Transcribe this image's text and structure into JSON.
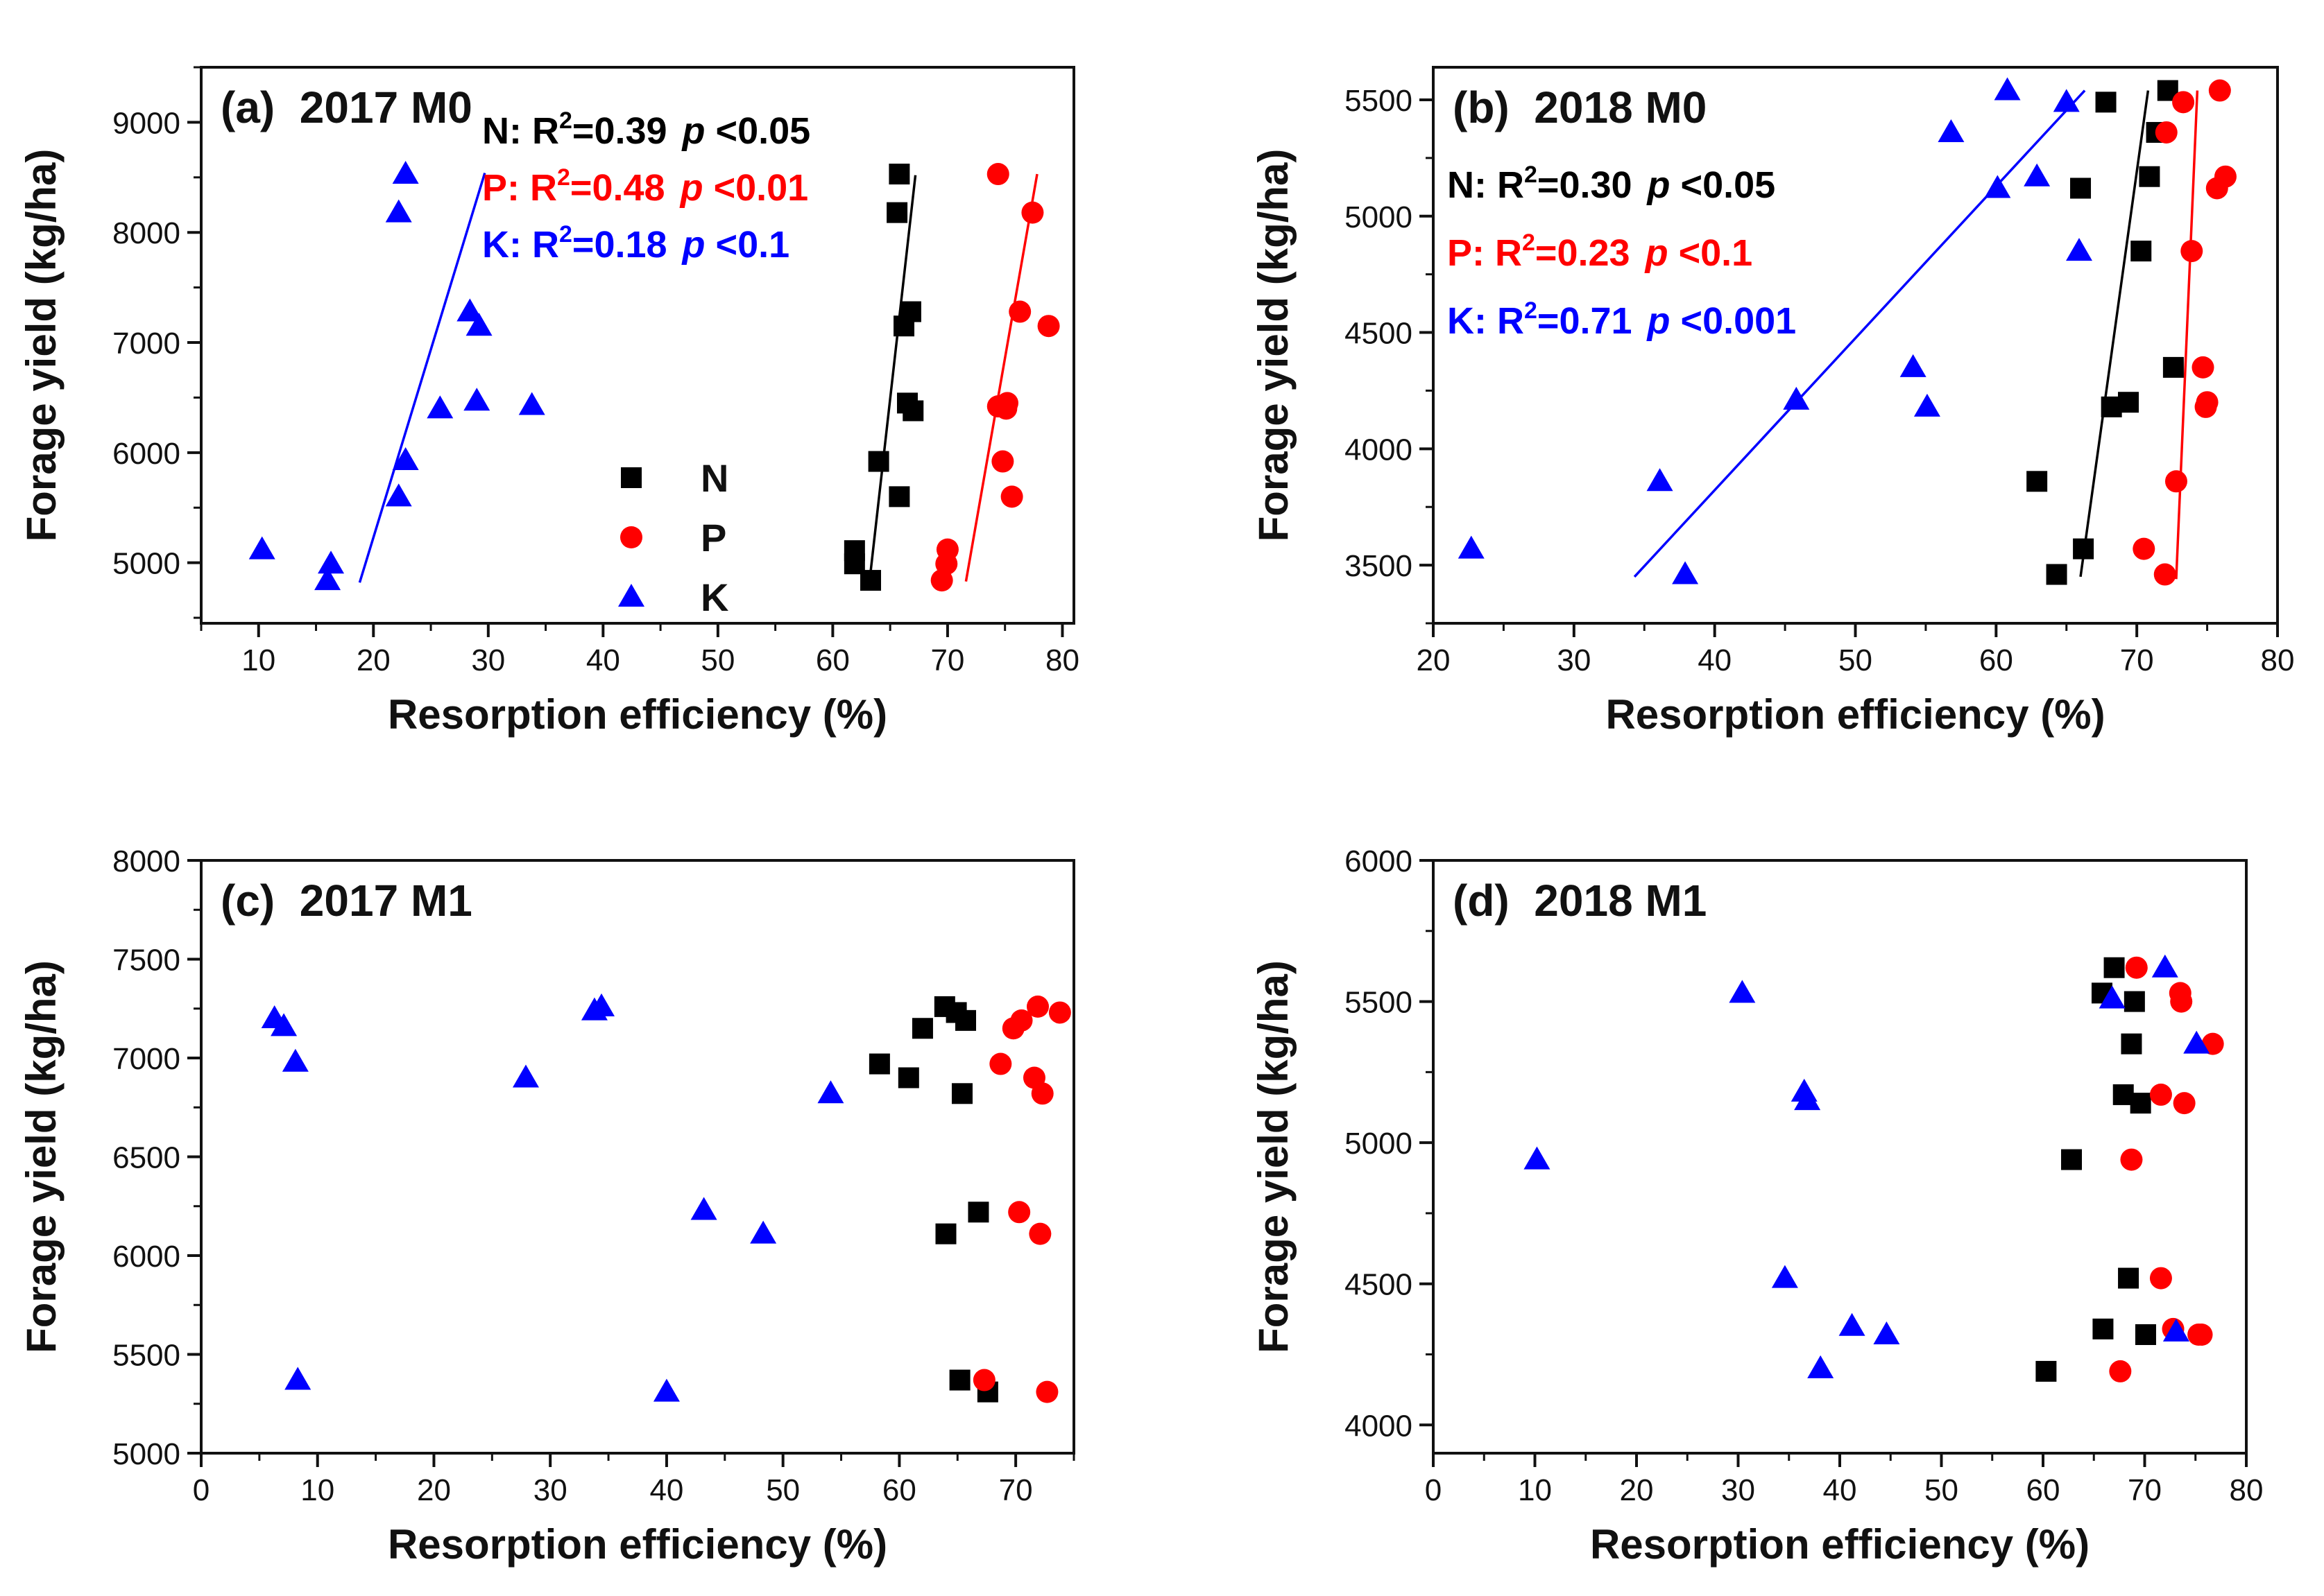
{
  "figure": {
    "type": "scatter",
    "panel_count": 4
  },
  "colors": {
    "N": "#000000",
    "P": "#ff0000",
    "K": "#0000ff",
    "axis": "#111111"
  },
  "legend_entries": [
    {
      "key": "N",
      "label": "N",
      "marker": "square",
      "color": "#000000"
    },
    {
      "key": "P",
      "label": "P",
      "marker": "circle",
      "color": "#ff0000"
    },
    {
      "key": "K",
      "label": "K",
      "marker": "triangle",
      "color": "#0000ff"
    }
  ],
  "chart_data": [
    {
      "id": "a",
      "type": "scatter",
      "title": "(a)  2017 M0",
      "xlabel": "Resorption efficiency (%)",
      "ylabel": "Forage yield (kg/ha)",
      "xlim": [
        5,
        81
      ],
      "ylim": [
        4450,
        9500
      ],
      "xticks": [
        10,
        20,
        30,
        40,
        50,
        60,
        70,
        80
      ],
      "xminor": 5,
      "yticks": [
        5000,
        6000,
        7000,
        8000,
        9000
      ],
      "yminor": 500,
      "legend": "bottom-center",
      "stats": [
        {
          "series": "N",
          "text": "N: R²=0.39  p <0.05",
          "label": "N: R",
          "sup": "2",
          "rest": "=0.39",
          "p": "p",
          "pval": " <0.05"
        },
        {
          "series": "P",
          "text": "P: R²=0.48  p <0.01",
          "label": "P: R",
          "sup": "2",
          "rest": "=0.48",
          "p": "p",
          "pval": " <0.01"
        },
        {
          "series": "K",
          "text": "K: R²=0.18  p <0.1",
          "label": "K: R",
          "sup": "2",
          "rest": "=0.18",
          "p": "p",
          "pval": " <0.1"
        }
      ],
      "series": [
        {
          "name": "N",
          "x": [
            65.8,
            65.6,
            66.8,
            66.2,
            66.5,
            67.0,
            64.0,
            65.8,
            61.9,
            61.9,
            63.3
          ],
          "y": [
            8530,
            8180,
            7280,
            7150,
            6450,
            6380,
            5920,
            5600,
            5110,
            4990,
            4840
          ]
        },
        {
          "name": "P",
          "x": [
            74.4,
            77.4,
            76.3,
            78.8,
            74.4,
            75.2,
            75.1,
            74.8,
            75.6,
            70.0,
            69.9,
            69.5
          ],
          "y": [
            8530,
            8180,
            7280,
            7150,
            6420,
            6450,
            6400,
            5920,
            5600,
            5120,
            4990,
            4840
          ]
        },
        {
          "name": "K",
          "x": [
            22.8,
            22.2,
            28.4,
            29.2,
            29.0,
            25.8,
            33.8,
            22.8,
            22.2,
            10.3,
            16.3,
            16.0
          ],
          "y": [
            8530,
            8180,
            7280,
            7150,
            6470,
            6400,
            6430,
            5930,
            5600,
            5120,
            4990,
            4840
          ]
        }
      ],
      "fits": [
        {
          "series": "N",
          "x": [
            63.3,
            67.2
          ],
          "y": [
            4920,
            8520
          ]
        },
        {
          "series": "P",
          "x": [
            71.6,
            77.8
          ],
          "y": [
            4830,
            8530
          ]
        },
        {
          "series": "K",
          "x": [
            18.8,
            29.7
          ],
          "y": [
            4820,
            8540
          ]
        }
      ]
    },
    {
      "id": "b",
      "type": "scatter",
      "title": "(b)  2018 M0",
      "xlabel": "Resorption efficiency (%)",
      "ylabel": "Forage yield (kg/ha)",
      "xlim": [
        20,
        80
      ],
      "ylim": [
        3250,
        5640
      ],
      "xticks": [
        20,
        30,
        40,
        50,
        60,
        70,
        80
      ],
      "xminor": 5,
      "yticks": [
        3500,
        4000,
        4500,
        5000,
        5500
      ],
      "yminor": 250,
      "legend": "none",
      "stats": [
        {
          "series": "N",
          "text": "N: R²=0.30  p <0.05",
          "label": "N: R",
          "sup": "2",
          "rest": "=0.30",
          "p": "p",
          "pval": " <0.05"
        },
        {
          "series": "P",
          "text": "P: R²=0.23  p <0.1",
          "label": "P: R",
          "sup": "2",
          "rest": "=0.23",
          "p": "p",
          "pval": " <0.1"
        },
        {
          "series": "K",
          "text": "K: R²=0.71  p <0.001",
          "label": "K: R",
          "sup": "2",
          "rest": "=0.71",
          "p": "p",
          "pval": " <0.001"
        }
      ],
      "series": [
        {
          "name": "N",
          "x": [
            72.2,
            67.8,
            71.4,
            66.0,
            70.9,
            70.3,
            72.6,
            69.4,
            68.2,
            62.9,
            66.2,
            64.3
          ],
          "y": [
            5540,
            5490,
            5360,
            5120,
            5170,
            4850,
            4350,
            4200,
            4180,
            3860,
            3570,
            3460
          ]
        },
        {
          "name": "P",
          "x": [
            75.9,
            73.3,
            72.1,
            75.7,
            76.3,
            73.9,
            74.7,
            75.0,
            74.9,
            72.8,
            70.5,
            72.0
          ],
          "y": [
            5540,
            5490,
            5360,
            5120,
            5170,
            4850,
            4350,
            4200,
            4180,
            3860,
            3570,
            3460
          ]
        },
        {
          "name": "K",
          "x": [
            60.8,
            65.0,
            56.8,
            60.1,
            62.9,
            65.9,
            54.1,
            45.8,
            55.1,
            36.1,
            22.7,
            37.9
          ],
          "y": [
            5540,
            5490,
            5360,
            5120,
            5170,
            4850,
            4350,
            4210,
            4180,
            3860,
            3570,
            3460
          ]
        }
      ],
      "fits": [
        {
          "series": "N",
          "x": [
            66.0,
            70.8
          ],
          "y": [
            3450,
            5540
          ]
        },
        {
          "series": "P",
          "x": [
            72.8,
            74.3
          ],
          "y": [
            3440,
            5540
          ]
        },
        {
          "series": "K",
          "x": [
            34.3,
            66.3
          ],
          "y": [
            3450,
            5540
          ]
        }
      ]
    },
    {
      "id": "c",
      "type": "scatter",
      "title": "(c)  2017 M1",
      "xlabel": "Resorption efficiency (%)",
      "ylabel": "Forage yield (kg/ha)",
      "xlim": [
        0,
        75
      ],
      "ylim": [
        5000,
        8000
      ],
      "xticks": [
        0,
        10,
        20,
        30,
        40,
        50,
        60,
        70
      ],
      "xminor": 5,
      "yticks": [
        5000,
        5500,
        6000,
        6500,
        7000,
        7500,
        8000
      ],
      "yminor": 250,
      "legend": "none",
      "stats": [],
      "series": [
        {
          "name": "N",
          "x": [
            63.9,
            64.9,
            65.7,
            62.0,
            58.3,
            60.8,
            65.4,
            66.8,
            64.0,
            65.2,
            67.6
          ],
          "y": [
            7260,
            7230,
            7190,
            7150,
            6970,
            6900,
            6820,
            6220,
            6110,
            5370,
            5310
          ]
        },
        {
          "name": "P",
          "x": [
            71.9,
            73.8,
            70.5,
            69.8,
            68.7,
            71.6,
            72.3,
            70.3,
            72.1,
            67.3,
            72.7
          ],
          "y": [
            7260,
            7230,
            7190,
            7150,
            6970,
            6900,
            6820,
            6220,
            6110,
            5370,
            5310
          ]
        },
        {
          "name": "K",
          "x": [
            6.3,
            7.1,
            8.1,
            27.9,
            33.8,
            34.4,
            54.1,
            43.2,
            48.3,
            8.3,
            40.0
          ],
          "y": [
            7200,
            7160,
            6980,
            6900,
            7240,
            7260,
            6820,
            6230,
            6110,
            5370,
            5310
          ]
        }
      ],
      "fits": []
    },
    {
      "id": "d",
      "type": "scatter",
      "title": "(d)  2018 M1",
      "xlabel": "Resorption efficiency (%)",
      "ylabel": "Forage yield (kg/ha)",
      "xlim": [
        0,
        80
      ],
      "ylim": [
        3900,
        6000
      ],
      "xticks": [
        0,
        10,
        20,
        30,
        40,
        50,
        60,
        70,
        80
      ],
      "xminor": 5,
      "yticks": [
        4000,
        4500,
        5000,
        5500,
        6000
      ],
      "yminor": 250,
      "legend": "none",
      "stats": [],
      "series": [
        {
          "name": "N",
          "x": [
            67.0,
            65.8,
            69.0,
            68.7,
            67.9,
            69.6,
            62.8,
            68.4,
            65.9,
            70.1,
            60.3
          ],
          "y": [
            5620,
            5530,
            5500,
            5350,
            5170,
            5140,
            4940,
            4520,
            4340,
            4320,
            4190
          ]
        },
        {
          "name": "P",
          "x": [
            69.2,
            73.5,
            73.6,
            76.7,
            71.6,
            73.9,
            68.7,
            71.6,
            72.8,
            75.6,
            75.3,
            67.6
          ],
          "y": [
            5620,
            5530,
            5500,
            5350,
            5170,
            5140,
            4940,
            4520,
            4340,
            4320,
            4320,
            4190
          ]
        },
        {
          "name": "K",
          "x": [
            72.0,
            66.8,
            75.1,
            30.4,
            36.5,
            36.8,
            10.2,
            34.6,
            41.2,
            44.6,
            38.1,
            73.1
          ],
          "y": [
            5620,
            5510,
            5350,
            5530,
            5180,
            5150,
            4940,
            4520,
            4350,
            4320,
            4200,
            4330
          ]
        }
      ],
      "fits": []
    }
  ]
}
